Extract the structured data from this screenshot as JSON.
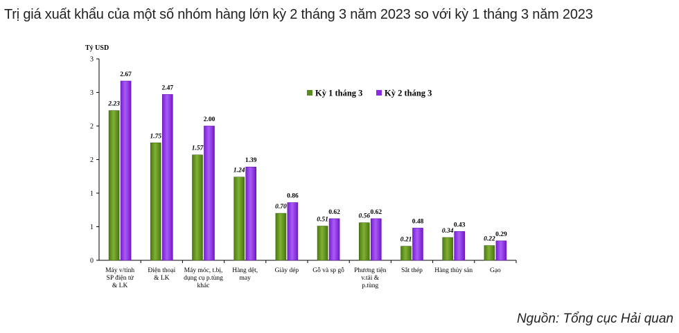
{
  "title": "Trị giá xuất khẩu của một số nhóm hàng lớn kỳ 2 tháng 3 năm 2023 so với kỳ 1 tháng 3 năm 2023",
  "source": "Nguồn: Tổng cục Hải quan",
  "chart_data": {
    "type": "bar",
    "title": "",
    "ylabel": "Tỷ USD",
    "xlabel": "",
    "ylim": [
      0,
      3
    ],
    "y_ticks": [
      "0",
      "1",
      "1",
      "2",
      "2",
      "3",
      "3"
    ],
    "categories": [
      [
        "Máy v/tính",
        "SP điện tử",
        "& LK"
      ],
      [
        "Điện thoại",
        "& LK"
      ],
      [
        "Máy móc, t.bị,",
        "dụng cụ p.tùng",
        "khác"
      ],
      [
        "Hàng dệt,",
        "may"
      ],
      [
        "Giày dép"
      ],
      [
        "Gỗ và sp gỗ"
      ],
      [
        "Phương tiện",
        "v.tải &",
        "p.tùng"
      ],
      [
        "Sắt thép"
      ],
      [
        "Hàng thủy sản"
      ],
      [
        "Gạo"
      ]
    ],
    "series": [
      {
        "name": "Kỳ 1 tháng 3",
        "color": "#5a8a1e",
        "values": [
          2.23,
          1.75,
          1.57,
          1.24,
          0.7,
          0.51,
          0.56,
          0.21,
          0.34,
          0.22
        ],
        "labels": [
          "2.23",
          "1.75",
          "1.57",
          "1.24",
          "0.70",
          "0.51",
          "0.56",
          "0.21",
          "0.34",
          "0.22"
        ]
      },
      {
        "name": "Kỳ 2 tháng 3",
        "color": "#8a2be2",
        "values": [
          2.67,
          2.47,
          2.0,
          1.39,
          0.86,
          0.62,
          0.62,
          0.48,
          0.43,
          0.29
        ],
        "labels": [
          "2.67",
          "2.47",
          "2.00",
          "1.39",
          "0.86",
          "0.62",
          "0.62",
          "0.48",
          "0.43",
          "0.29"
        ]
      }
    ],
    "legend": "top-right",
    "grid": false
  }
}
